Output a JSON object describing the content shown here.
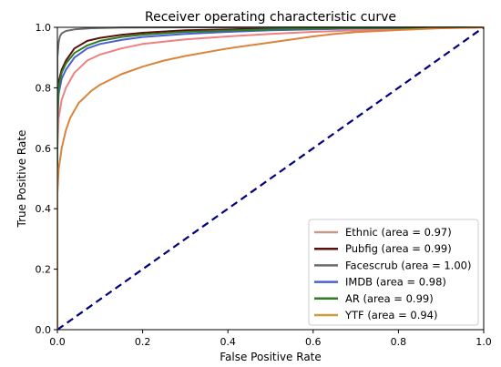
{
  "chart_data": {
    "type": "line",
    "title": "Receiver operating characteristic curve",
    "xlabel": "False Positive Rate",
    "ylabel": "True Positive Rate",
    "xlim": [
      0,
      1
    ],
    "ylim": [
      0,
      1
    ],
    "xticks": [
      "0.0",
      "0.2",
      "0.4",
      "0.6",
      "0.8",
      "1.0"
    ],
    "yticks": [
      "0.0",
      "0.2",
      "0.4",
      "0.6",
      "0.8",
      "1.0"
    ],
    "grid": false,
    "legend_position": "lower-right",
    "series": [
      {
        "name": "Ethnic (area = 0.97)",
        "color": "#f08080",
        "legend_color": "#c49a8a",
        "points": [
          [
            0,
            0
          ],
          [
            0,
            0.6
          ],
          [
            0.003,
            0.7
          ],
          [
            0.01,
            0.76
          ],
          [
            0.02,
            0.8
          ],
          [
            0.04,
            0.85
          ],
          [
            0.07,
            0.89
          ],
          [
            0.1,
            0.91
          ],
          [
            0.15,
            0.93
          ],
          [
            0.2,
            0.945
          ],
          [
            0.3,
            0.96
          ],
          [
            0.4,
            0.97
          ],
          [
            0.5,
            0.978
          ],
          [
            0.6,
            0.985
          ],
          [
            0.8,
            0.995
          ],
          [
            1.0,
            1.0
          ]
        ]
      },
      {
        "name": "Pubfig (area = 0.99)",
        "color": "#5a0e0e",
        "points": [
          [
            0,
            0
          ],
          [
            0,
            0.7
          ],
          [
            0.003,
            0.82
          ],
          [
            0.01,
            0.86
          ],
          [
            0.02,
            0.89
          ],
          [
            0.04,
            0.93
          ],
          [
            0.07,
            0.955
          ],
          [
            0.1,
            0.965
          ],
          [
            0.15,
            0.975
          ],
          [
            0.2,
            0.982
          ],
          [
            0.3,
            0.99
          ],
          [
            0.5,
            0.996
          ],
          [
            0.7,
            0.999
          ],
          [
            1.0,
            1.0
          ]
        ]
      },
      {
        "name": "Facescrub (area = 1.00)",
        "color": "#6b6b6b",
        "points": [
          [
            0,
            0
          ],
          [
            0,
            0.9
          ],
          [
            0.003,
            0.95
          ],
          [
            0.006,
            0.97
          ],
          [
            0.01,
            0.98
          ],
          [
            0.02,
            0.988
          ],
          [
            0.04,
            0.993
          ],
          [
            0.08,
            0.997
          ],
          [
            0.15,
            0.999
          ],
          [
            0.3,
            1.0
          ],
          [
            1.0,
            1.0
          ]
        ]
      },
      {
        "name": "IMDB (area = 0.98)",
        "color": "#4b5fd8",
        "points": [
          [
            0,
            0
          ],
          [
            0,
            0.68
          ],
          [
            0.003,
            0.78
          ],
          [
            0.01,
            0.83
          ],
          [
            0.02,
            0.86
          ],
          [
            0.04,
            0.9
          ],
          [
            0.07,
            0.93
          ],
          [
            0.1,
            0.945
          ],
          [
            0.15,
            0.958
          ],
          [
            0.2,
            0.968
          ],
          [
            0.3,
            0.978
          ],
          [
            0.4,
            0.985
          ],
          [
            0.5,
            0.99
          ],
          [
            0.7,
            0.996
          ],
          [
            1.0,
            1.0
          ]
        ]
      },
      {
        "name": "AR (area = 0.99)",
        "color": "#2e7d1e",
        "points": [
          [
            0,
            0
          ],
          [
            0,
            0.7
          ],
          [
            0.003,
            0.8
          ],
          [
            0.01,
            0.85
          ],
          [
            0.02,
            0.88
          ],
          [
            0.04,
            0.915
          ],
          [
            0.07,
            0.94
          ],
          [
            0.1,
            0.955
          ],
          [
            0.15,
            0.968
          ],
          [
            0.2,
            0.976
          ],
          [
            0.3,
            0.985
          ],
          [
            0.5,
            0.993
          ],
          [
            0.7,
            0.998
          ],
          [
            1.0,
            1.0
          ]
        ]
      },
      {
        "name": "YTF (area = 0.94)",
        "color": "#d9843a",
        "legend_color": "#c99a3e",
        "points": [
          [
            0,
            0
          ],
          [
            0,
            0.45
          ],
          [
            0.003,
            0.53
          ],
          [
            0.01,
            0.6
          ],
          [
            0.02,
            0.66
          ],
          [
            0.03,
            0.7
          ],
          [
            0.05,
            0.75
          ],
          [
            0.08,
            0.79
          ],
          [
            0.1,
            0.81
          ],
          [
            0.15,
            0.845
          ],
          [
            0.2,
            0.87
          ],
          [
            0.25,
            0.89
          ],
          [
            0.3,
            0.905
          ],
          [
            0.4,
            0.93
          ],
          [
            0.5,
            0.95
          ],
          [
            0.6,
            0.97
          ],
          [
            0.65,
            0.978
          ],
          [
            0.7,
            0.984
          ],
          [
            0.8,
            0.991
          ],
          [
            0.9,
            0.997
          ],
          [
            1.0,
            1.0
          ]
        ]
      }
    ],
    "reference_line": {
      "style": "dashed",
      "color": "#000080",
      "points": [
        [
          0,
          0
        ],
        [
          1,
          1
        ]
      ]
    }
  }
}
